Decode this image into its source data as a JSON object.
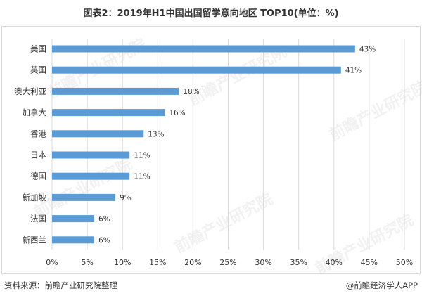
{
  "footer": {
    "source": "资料来源：前瞻产业研究院整理",
    "credit": "@前瞻经济学人APP"
  },
  "watermark": "前瞻产业研究院",
  "chart_data": {
    "type": "bar",
    "orientation": "horizontal",
    "title": "图表2：2019年H1中国出国留学意向地区 TOP10(单位：%)",
    "categories": [
      "美国",
      "英国",
      "澳大利亚",
      "加拿大",
      "香港",
      "日本",
      "德国",
      "新加坡",
      "法国",
      "新西兰"
    ],
    "values": [
      43,
      41,
      18,
      16,
      13,
      11,
      11,
      9,
      6,
      6
    ],
    "value_labels": [
      "43%",
      "41%",
      "18%",
      "16%",
      "13%",
      "11%",
      "11%",
      "9%",
      "6%",
      "6%"
    ],
    "xlim": [
      0,
      50
    ],
    "xticks": [
      "0%",
      "5%",
      "10%",
      "15%",
      "20%",
      "25%",
      "30%",
      "35%",
      "40%",
      "45%",
      "50%"
    ],
    "grid": "vertical",
    "bar_color": "#5b9bd5",
    "grid_color": "#d9d9d9"
  }
}
